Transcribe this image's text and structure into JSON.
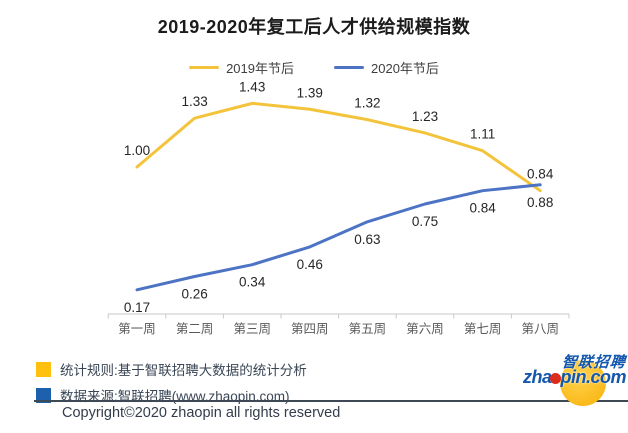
{
  "title": "2019-2020年复工后人才供给规模指数",
  "legend": [
    {
      "label": "2019年节后",
      "color": "#f3c43b"
    },
    {
      "label": "2020年节后",
      "color": "#4d74c4"
    }
  ],
  "chart_data": {
    "type": "line",
    "categories": [
      "第一周",
      "第二周",
      "第三周",
      "第四周",
      "第五周",
      "第六周",
      "第七周",
      "第八周"
    ],
    "series": [
      {
        "name": "2019年节后",
        "color": "#f3c43b",
        "values": [
          1.0,
          1.33,
          1.43,
          1.39,
          1.32,
          1.23,
          1.11,
          0.84
        ]
      },
      {
        "name": "2020年节后",
        "color": "#4d74c4",
        "values": [
          0.17,
          0.26,
          0.34,
          0.46,
          0.63,
          0.75,
          0.84,
          0.88
        ]
      }
    ],
    "title": "2019-2020年复工后人才供给规模指数",
    "xlabel": "",
    "ylabel": "",
    "ylim": [
      0,
      1.55
    ],
    "grid": false,
    "legend_position": "top",
    "value_labels": true,
    "axis_color": "#c9c9c9",
    "tick_label_color": "#595959",
    "value_label_color": "#262626"
  },
  "notes": [
    {
      "color": "#ffc10e",
      "text": "统计规则:基于智联招聘大数据的统计分析"
    },
    {
      "color": "#1d60ae",
      "text": "数据来源:智联招聘(www.zhaopin.com)"
    }
  ],
  "copyright": "Copyright©2020 zhaopin all rights reserved",
  "logo": {
    "cn": "智联招聘",
    "en_pre": "zha",
    "en_post": "pin.com",
    "text_color": "#1457ae",
    "dot_color": "#dc2a1c",
    "circle_color": "#f9b10a"
  }
}
